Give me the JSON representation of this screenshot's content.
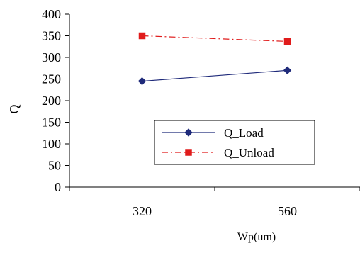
{
  "chart_data": {
    "type": "line",
    "title": "",
    "xlabel": "Wp(um)",
    "ylabel": "Q",
    "categories": [
      "320",
      "560"
    ],
    "ylim": [
      0,
      400
    ],
    "yticks": [
      0,
      50,
      100,
      150,
      200,
      250,
      300,
      350,
      400
    ],
    "grid": false,
    "legend_position": "lower-right inside plot",
    "series": [
      {
        "name": "Q_Load",
        "values": [
          245,
          270
        ],
        "color": "#1f2a7a",
        "line_style": "solid",
        "marker": "diamond"
      },
      {
        "name": "Q_Unload",
        "values": [
          350,
          337
        ],
        "color": "#e01b1b",
        "line_style": "dash-dot",
        "marker": "square"
      }
    ]
  }
}
